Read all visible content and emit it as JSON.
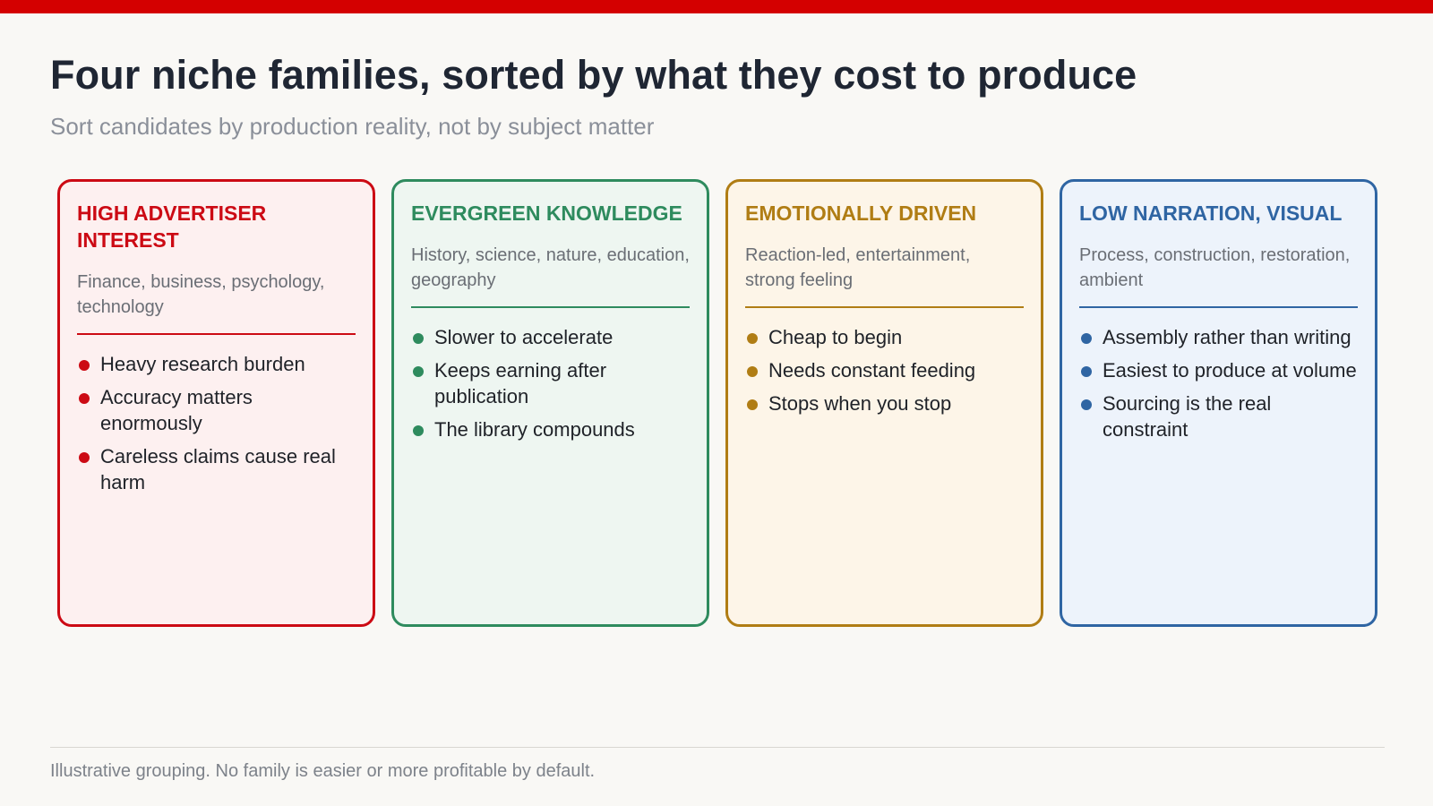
{
  "title": "Four niche families, sorted by what they cost to produce",
  "subtitle": "Sort candidates by production reality, not by subject matter",
  "cards": [
    {
      "title": "HIGH ADVERTISER INTEREST",
      "description": "Finance, business, psychology, technology",
      "accent": "#cc0a14",
      "background": "#fdf0f0",
      "bullets": [
        "Heavy research burden",
        "Accuracy matters enormously",
        "Careless claims cause real harm"
      ]
    },
    {
      "title": "EVERGREEN KNOWLEDGE",
      "description": "History, science, nature, education, geography",
      "accent": "#2e8b5e",
      "background": "#eef6f1",
      "bullets": [
        "Slower to accelerate",
        "Keeps earning after publication",
        "The library compounds"
      ]
    },
    {
      "title": "EMOTIONALLY DRIVEN",
      "description": "Reaction-led, entertainment, strong feeling",
      "accent": "#b07d14",
      "background": "#fdf5e8",
      "bullets": [
        "Cheap to begin",
        "Needs constant feeding",
        "Stops when you stop"
      ]
    },
    {
      "title": "LOW NARRATION, VISUAL",
      "description": "Process, construction, restoration, ambient",
      "accent": "#2f65a3",
      "background": "#edf3fb",
      "bullets": [
        "Assembly rather than writing",
        "Easiest to produce at volume",
        "Sourcing is the real constraint"
      ]
    }
  ],
  "footnote": "Illustrative grouping. No family is easier or more profitable by default.",
  "colors": {
    "top_bar": "#d40000",
    "background": "#f9f8f5"
  }
}
